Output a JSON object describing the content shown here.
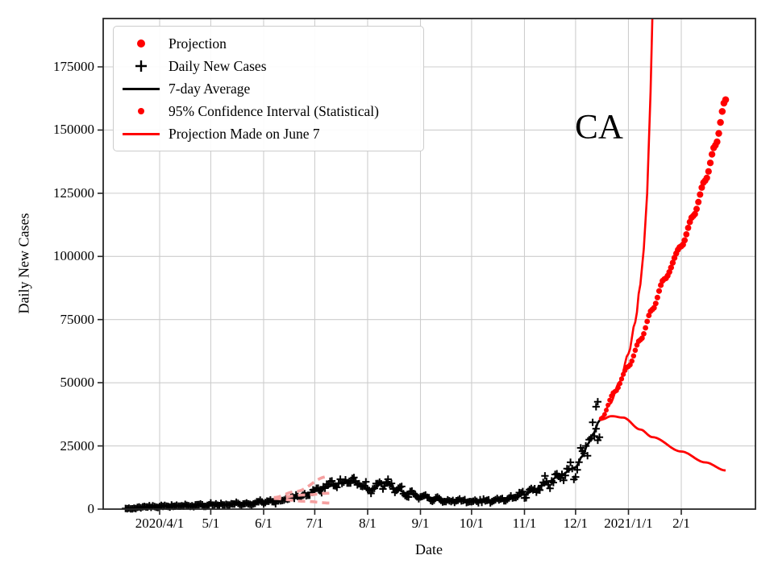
{
  "colors": {
    "red": "#ff0000",
    "pink": "#f5a0a0",
    "black": "#000000",
    "grid": "#cdcdcd",
    "spine": "#262626",
    "legend_border": "#cccccc"
  },
  "legend": {
    "items": [
      {
        "label": "Projection",
        "marker": "red-dot-large"
      },
      {
        "label": "Daily New Cases",
        "marker": "black-plus"
      },
      {
        "label": "7-day Average",
        "marker": "black-line"
      },
      {
        "label": "95% Confidence Interval (Statistical)",
        "marker": "red-dot-small"
      },
      {
        "label": "Projection Made on June 7",
        "marker": "red-line"
      }
    ]
  },
  "chart_data": {
    "type": "line",
    "title": "",
    "xlabel": "Date",
    "ylabel": "Daily New Cases",
    "annotation": {
      "text": "CA",
      "date": "2020-12-14",
      "value": 150500
    },
    "grid": true,
    "legend_position": "upper left",
    "ylim": [
      0,
      194000
    ],
    "xlim": [
      "2020-02-27",
      "2021-03-17"
    ],
    "y_ticks": [
      0,
      25000,
      50000,
      75000,
      100000,
      125000,
      150000,
      175000
    ],
    "x_ticks": [
      {
        "date": "2020-04-01",
        "label": "2020/4/1"
      },
      {
        "date": "2020-05-01",
        "label": "5/1"
      },
      {
        "date": "2020-06-01",
        "label": "6/1"
      },
      {
        "date": "2020-07-01",
        "label": "7/1"
      },
      {
        "date": "2020-08-01",
        "label": "8/1"
      },
      {
        "date": "2020-09-01",
        "label": "9/1"
      },
      {
        "date": "2020-10-01",
        "label": "10/1"
      },
      {
        "date": "2020-11-01",
        "label": "11/1"
      },
      {
        "date": "2020-12-01",
        "label": "12/1"
      },
      {
        "date": "2021-01-01",
        "label": "2021/1/1"
      },
      {
        "date": "2021-02-01",
        "label": "2/1"
      }
    ],
    "series": {
      "seven_day_average": {
        "name": "7-day Average",
        "anchors": [
          [
            "2020-03-15",
            250
          ],
          [
            "2020-03-22",
            800
          ],
          [
            "2020-04-01",
            1200
          ],
          [
            "2020-04-10",
            1250
          ],
          [
            "2020-04-20",
            1450
          ],
          [
            "2020-05-01",
            1700
          ],
          [
            "2020-05-10",
            1900
          ],
          [
            "2020-05-20",
            2200
          ],
          [
            "2020-06-01",
            2900
          ],
          [
            "2020-06-10",
            3300
          ],
          [
            "2020-06-20",
            4800
          ],
          [
            "2020-06-25",
            5200
          ],
          [
            "2020-07-01",
            7200
          ],
          [
            "2020-07-08",
            8800
          ],
          [
            "2020-07-15",
            10200
          ],
          [
            "2020-07-22",
            11200
          ],
          [
            "2020-07-28",
            9200
          ],
          [
            "2020-08-03",
            7800
          ],
          [
            "2020-08-11",
            10600
          ],
          [
            "2020-08-17",
            8200
          ],
          [
            "2020-08-24",
            6300
          ],
          [
            "2020-09-01",
            5100
          ],
          [
            "2020-09-08",
            4200
          ],
          [
            "2020-09-15",
            3600
          ],
          [
            "2020-09-22",
            3400
          ],
          [
            "2020-10-01",
            3200
          ],
          [
            "2020-10-08",
            3300
          ],
          [
            "2020-10-15",
            3500
          ],
          [
            "2020-10-22",
            3900
          ],
          [
            "2020-11-01",
            5800
          ],
          [
            "2020-11-08",
            8000
          ],
          [
            "2020-11-15",
            10800
          ],
          [
            "2020-11-22",
            13500
          ],
          [
            "2020-12-01",
            16500
          ],
          [
            "2020-12-05",
            21000
          ],
          [
            "2020-12-08",
            25500
          ],
          [
            "2020-12-11",
            29500
          ],
          [
            "2020-12-15",
            35000
          ]
        ]
      },
      "daily_new_cases": {
        "name": "Daily New Cases",
        "start": "2020-03-12",
        "end": "2020-12-15",
        "seed": 7,
        "noise_frac": 0.18,
        "weekly_amp": 0.13,
        "outliers": [
          [
            "2020-12-13",
            40500
          ],
          [
            "2020-12-14",
            42500
          ]
        ]
      },
      "projection": {
        "name": "Projection",
        "anchors": [
          [
            "2020-12-16",
            35800
          ],
          [
            "2020-12-24",
            46500
          ],
          [
            "2021-01-01",
            56500
          ],
          [
            "2021-01-08",
            67000
          ],
          [
            "2021-01-15",
            79000
          ],
          [
            "2021-01-22",
            91000
          ],
          [
            "2021-02-01",
            104000
          ],
          [
            "2021-02-08",
            116000
          ],
          [
            "2021-02-15",
            130000
          ],
          [
            "2021-02-21",
            144000
          ],
          [
            "2021-02-27",
            162000
          ]
        ]
      },
      "ci_upper": {
        "name": "95% Confidence Interval (Statistical) upper",
        "anchors": [
          [
            "2020-12-16",
            35400
          ],
          [
            "2020-12-21",
            41500
          ],
          [
            "2020-12-27",
            50500
          ],
          [
            "2021-01-01",
            61500
          ],
          [
            "2021-01-05",
            74000
          ],
          [
            "2021-01-08",
            89000
          ],
          [
            "2021-01-10",
            103000
          ],
          [
            "2021-01-12",
            125000
          ],
          [
            "2021-01-14",
            165000
          ],
          [
            "2021-01-15",
            194000
          ]
        ]
      },
      "ci_lower": {
        "name": "95% Confidence Interval (Statistical) lower",
        "anchors": [
          [
            "2020-12-16",
            35400
          ],
          [
            "2020-12-22",
            36800
          ],
          [
            "2020-12-29",
            36200
          ],
          [
            "2021-01-08",
            31500
          ],
          [
            "2021-01-15",
            28500
          ],
          [
            "2021-02-01",
            22800
          ],
          [
            "2021-02-15",
            18500
          ],
          [
            "2021-02-27",
            15300
          ]
        ]
      },
      "june7_projection": {
        "name": "Projection Made on June 7",
        "lines": [
          [
            [
              "2020-06-07",
              4600
            ],
            [
              "2020-06-20",
              7000
            ],
            [
              "2020-07-08",
              12800
            ]
          ],
          [
            [
              "2020-06-07",
              4400
            ],
            [
              "2020-06-25",
              5600
            ],
            [
              "2020-07-10",
              6300
            ]
          ],
          [
            [
              "2020-06-07",
              4200
            ],
            [
              "2020-06-25",
              3100
            ],
            [
              "2020-07-10",
              2400
            ]
          ]
        ]
      }
    }
  }
}
